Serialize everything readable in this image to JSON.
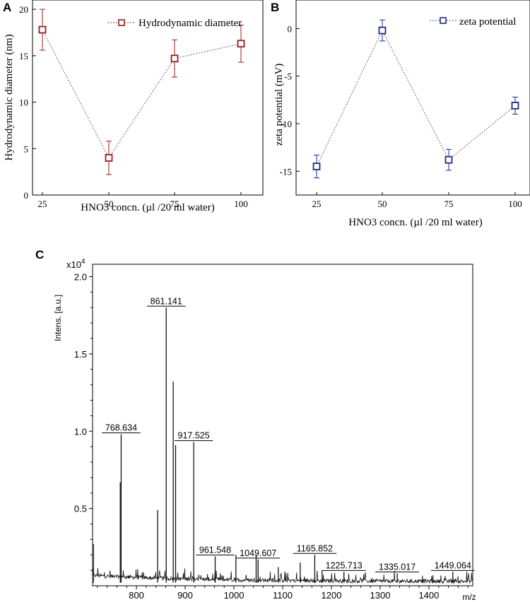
{
  "panels": {
    "a": {
      "letter": "A"
    },
    "b": {
      "letter": "B"
    },
    "c": {
      "letter": "C"
    }
  },
  "chart_data": [
    {
      "id": "a",
      "type": "line",
      "title": "",
      "xlabel": "HNO3 concn. (µl /20 ml water)",
      "ylabel": "Hydrodynamic diameter (nm)",
      "x": [
        25,
        50,
        75,
        100
      ],
      "xticks": [
        "25",
        "50",
        "75",
        "100"
      ],
      "yticks": [
        "0",
        "5",
        "10",
        "15",
        "20"
      ],
      "ylim": [
        0,
        21
      ],
      "series": [
        {
          "name": "Hydrodynamic diameter",
          "values": [
            17.8,
            4.0,
            14.7,
            16.3
          ],
          "errors": [
            2.2,
            1.8,
            2.0,
            2.0
          ],
          "color": "#9b1b1b"
        }
      ],
      "legend": "top-right"
    },
    {
      "id": "b",
      "type": "line",
      "title": "",
      "xlabel": "HNO3 concn. (µl /20 ml water)",
      "ylabel": "zeta potential (mV)",
      "x": [
        25,
        50,
        75,
        100
      ],
      "xticks": [
        "25",
        "50",
        "75",
        "100"
      ],
      "yticks": [
        "0",
        "-5",
        "-10",
        "-15"
      ],
      "ylim": [
        -17.5,
        3
      ],
      "series": [
        {
          "name": "zeta potential",
          "values": [
            -14.5,
            -0.2,
            -13.8,
            -8.1
          ],
          "errors": [
            1.2,
            1.1,
            1.1,
            0.9
          ],
          "color": "#1e2a8c"
        }
      ],
      "legend": "top-right"
    },
    {
      "id": "c",
      "type": "spectrum",
      "title": "",
      "xlabel": "m/z",
      "ylabel": "Intens. [a.u.]",
      "yscale_label": "x10",
      "yscale_exp": "4",
      "xlim": [
        710,
        1490
      ],
      "ylim": [
        0,
        2.08
      ],
      "xticks": [
        "800",
        "900",
        "1000",
        "1100",
        "1200",
        "1300",
        "1400"
      ],
      "yticks": [
        "0.5",
        "1.0",
        "1.5",
        "2.0"
      ],
      "peaks_major": [
        [
          768.634,
          0.98
        ],
        [
          861.141,
          1.8
        ],
        [
          875.5,
          1.32
        ],
        [
          880.3,
          0.91
        ],
        [
          917.525,
          0.93
        ],
        [
          843.5,
          0.49
        ],
        [
          766.8,
          0.67
        ],
        [
          961.548,
          0.19
        ],
        [
          1049.607,
          0.17
        ],
        [
          1045.6,
          0.2
        ],
        [
          1165.852,
          0.2
        ],
        [
          1225.713,
          0.09
        ],
        [
          1335.017,
          0.08
        ],
        [
          1449.064,
          0.09
        ],
        [
          1004.0,
          0.2
        ],
        [
          1136.0,
          0.15
        ],
        [
          1091.0,
          0.12
        ],
        [
          1181.0,
          0.1
        ]
      ],
      "annotations": [
        {
          "label": "768.634",
          "mz": 768.634,
          "h": 0.98
        },
        {
          "label": "861.141",
          "mz": 861.141,
          "h": 1.8
        },
        {
          "label": "917.525",
          "mz": 917.525,
          "h": 0.93
        },
        {
          "label": "961.548",
          "mz": 961.548,
          "h": 0.19
        },
        {
          "label": "1049.607",
          "mz": 1049.607,
          "h": 0.17
        },
        {
          "label": "1165.852",
          "mz": 1165.852,
          "h": 0.2
        },
        {
          "label": "1225.713",
          "mz": 1225.713,
          "h": 0.09
        },
        {
          "label": "1335.017",
          "mz": 1335.017,
          "h": 0.08
        },
        {
          "label": "1449.064",
          "mz": 1449.064,
          "h": 0.09
        }
      ]
    }
  ]
}
